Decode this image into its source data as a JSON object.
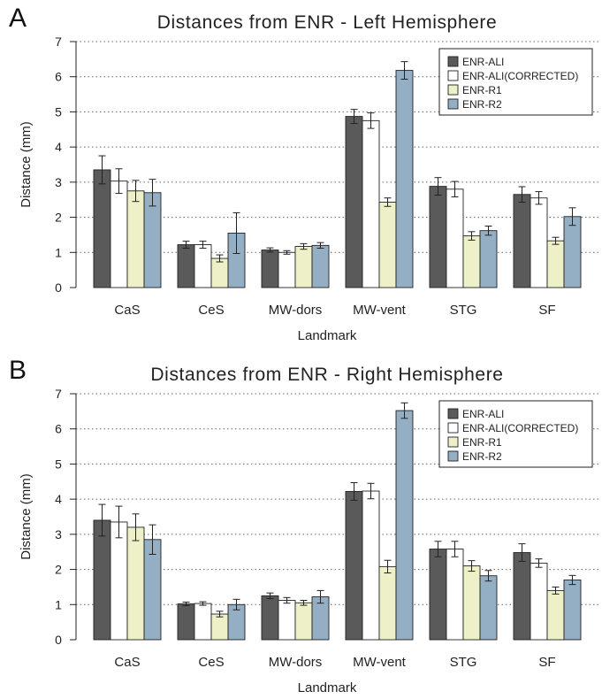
{
  "chart_data": [
    {
      "panel_label": "A",
      "type": "bar",
      "title": "Distances from ENR - Left Hemisphere",
      "xlabel": "Landmark",
      "ylabel": "Distance (mm)",
      "ylim": [
        0,
        7
      ],
      "yticks": [
        "0",
        "1",
        "2",
        "3",
        "4",
        "5",
        "6",
        "7"
      ],
      "grid": "horizontal dotted",
      "legend_position": "top-right",
      "categories": [
        "CaS",
        "CeS",
        "MW-dors",
        "MW-vent",
        "STG",
        "SF"
      ],
      "series": [
        {
          "name": "ENR-ALI",
          "color": "#5a5a5a",
          "values": [
            3.35,
            1.22,
            1.07,
            4.87,
            2.88,
            2.65
          ],
          "errors": [
            0.4,
            0.1,
            0.06,
            0.2,
            0.25,
            0.22
          ]
        },
        {
          "name": "ENR-ALI(CORRECTED)",
          "color": "#ffffff",
          "values": [
            3.03,
            1.22,
            1.0,
            4.75,
            2.8,
            2.55
          ],
          "errors": [
            0.35,
            0.1,
            0.05,
            0.22,
            0.22,
            0.18
          ]
        },
        {
          "name": "ENR-R1",
          "color": "#eef0c8",
          "values": [
            2.75,
            0.83,
            1.17,
            2.43,
            1.47,
            1.33
          ],
          "errors": [
            0.3,
            0.1,
            0.08,
            0.12,
            0.12,
            0.1
          ]
        },
        {
          "name": "ENR-R2",
          "color": "#94aec3",
          "values": [
            2.7,
            1.55,
            1.2,
            6.18,
            1.62,
            2.02
          ],
          "errors": [
            0.38,
            0.58,
            0.08,
            0.25,
            0.13,
            0.25
          ]
        }
      ]
    },
    {
      "panel_label": "B",
      "type": "bar",
      "title": "Distances from ENR - Right Hemisphere",
      "xlabel": "Landmark",
      "ylabel": "Distance (mm)",
      "ylim": [
        0,
        7
      ],
      "yticks": [
        "0",
        "1",
        "2",
        "3",
        "4",
        "5",
        "6",
        "7"
      ],
      "grid": "horizontal dotted",
      "legend_position": "top-right",
      "categories": [
        "CaS",
        "CeS",
        "MW-dors",
        "MW-vent",
        "STG",
        "SF"
      ],
      "series": [
        {
          "name": "ENR-ALI",
          "color": "#5a5a5a",
          "values": [
            3.4,
            1.02,
            1.25,
            4.22,
            2.58,
            2.48
          ],
          "errors": [
            0.45,
            0.05,
            0.08,
            0.25,
            0.22,
            0.25
          ]
        },
        {
          "name": "ENR-ALI(CORRECTED)",
          "color": "#ffffff",
          "values": [
            3.35,
            1.03,
            1.12,
            4.23,
            2.58,
            2.18
          ],
          "errors": [
            0.45,
            0.05,
            0.08,
            0.22,
            0.22,
            0.12
          ]
        },
        {
          "name": "ENR-R1",
          "color": "#eef0c8",
          "values": [
            3.2,
            0.73,
            1.05,
            2.08,
            2.1,
            1.4
          ],
          "errors": [
            0.38,
            0.08,
            0.07,
            0.18,
            0.15,
            0.1
          ]
        },
        {
          "name": "ENR-R2",
          "color": "#94aec3",
          "values": [
            2.85,
            1.0,
            1.22,
            6.52,
            1.82,
            1.7
          ],
          "errors": [
            0.42,
            0.15,
            0.18,
            0.22,
            0.15,
            0.13
          ]
        }
      ]
    }
  ]
}
